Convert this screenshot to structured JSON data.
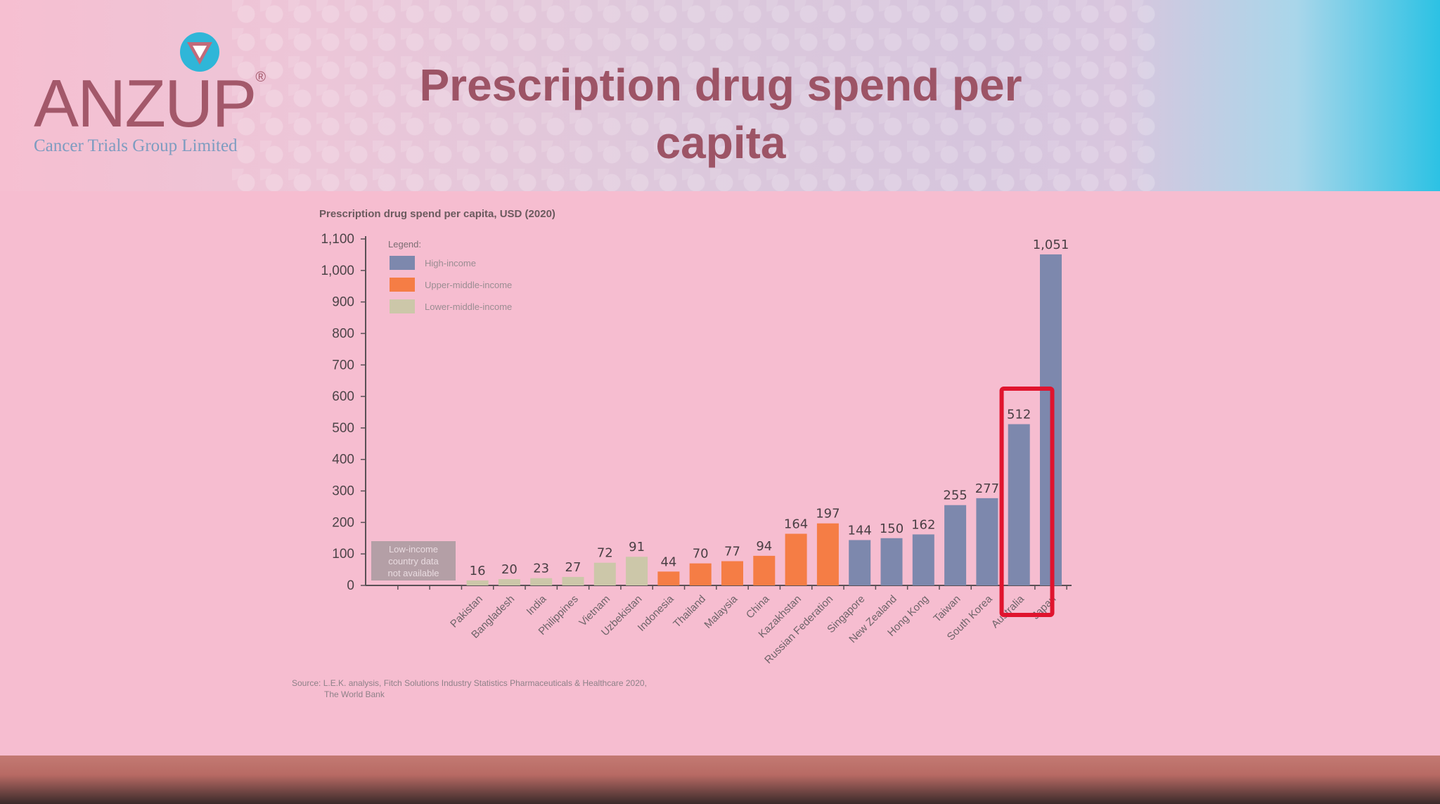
{
  "slide": {
    "title": "Prescription drug spend per capita",
    "logo": {
      "name": "ANZUP",
      "registered_mark": "®",
      "subtitle": "Cancer Trials Group Limited"
    },
    "source_line1": "Source: L.E.K. analysis, Fitch Solutions Industry Statistics Pharmaceuticals & Healthcare 2020,",
    "source_line2": "The World Bank"
  },
  "chart_data": {
    "type": "bar",
    "title": "Prescription drug spend per capita, USD (2020)",
    "ylim": [
      0,
      1100
    ],
    "yticks": [
      0,
      100,
      200,
      300,
      400,
      500,
      600,
      700,
      800,
      900,
      1000,
      1100
    ],
    "ytick_labels": [
      "0",
      "100",
      "200",
      "300",
      "400",
      "500",
      "600",
      "700",
      "800",
      "900",
      "1,000",
      "1,100"
    ],
    "legend": {
      "title": "Legend:",
      "placement": "top-left",
      "items": [
        {
          "label": "High-income",
          "color": "#7d88ad"
        },
        {
          "label": "Upper-middle-income",
          "color": "#f57d45"
        },
        {
          "label": "Lower-middle-income",
          "color": "#ccc7a9"
        }
      ]
    },
    "note": {
      "line1": "Low-income",
      "line2": "country data",
      "line3": "not available"
    },
    "categories": [
      "Pakistan",
      "Bangladesh",
      "India",
      "Philippines",
      "Vietnam",
      "Uzbekistan",
      "Indonesia",
      "Thailand",
      "Malaysia",
      "China",
      "Kazakhstan",
      "Russian Federation",
      "Singapore",
      "New Zealand",
      "Hong Kong",
      "Taiwan",
      "South Korea",
      "Australia",
      "Japan"
    ],
    "values": [
      16,
      20,
      23,
      27,
      72,
      91,
      44,
      70,
      77,
      94,
      164,
      197,
      144,
      150,
      162,
      255,
      277,
      512,
      1051
    ],
    "value_labels": [
      "16",
      "20",
      "23",
      "27",
      "72",
      "91",
      "44",
      "70",
      "77",
      "94",
      "164",
      "197",
      "144",
      "150",
      "162",
      "255",
      "277",
      "512",
      "1,051"
    ],
    "income_group": [
      "Lower-middle-income",
      "Lower-middle-income",
      "Lower-middle-income",
      "Lower-middle-income",
      "Lower-middle-income",
      "Lower-middle-income",
      "Upper-middle-income",
      "Upper-middle-income",
      "Upper-middle-income",
      "Upper-middle-income",
      "Upper-middle-income",
      "Upper-middle-income",
      "High-income",
      "High-income",
      "High-income",
      "High-income",
      "High-income",
      "High-income",
      "High-income"
    ],
    "highlight": {
      "categories": [
        "Australia",
        "Japan"
      ],
      "color": "#e0142e"
    },
    "grid": false
  }
}
